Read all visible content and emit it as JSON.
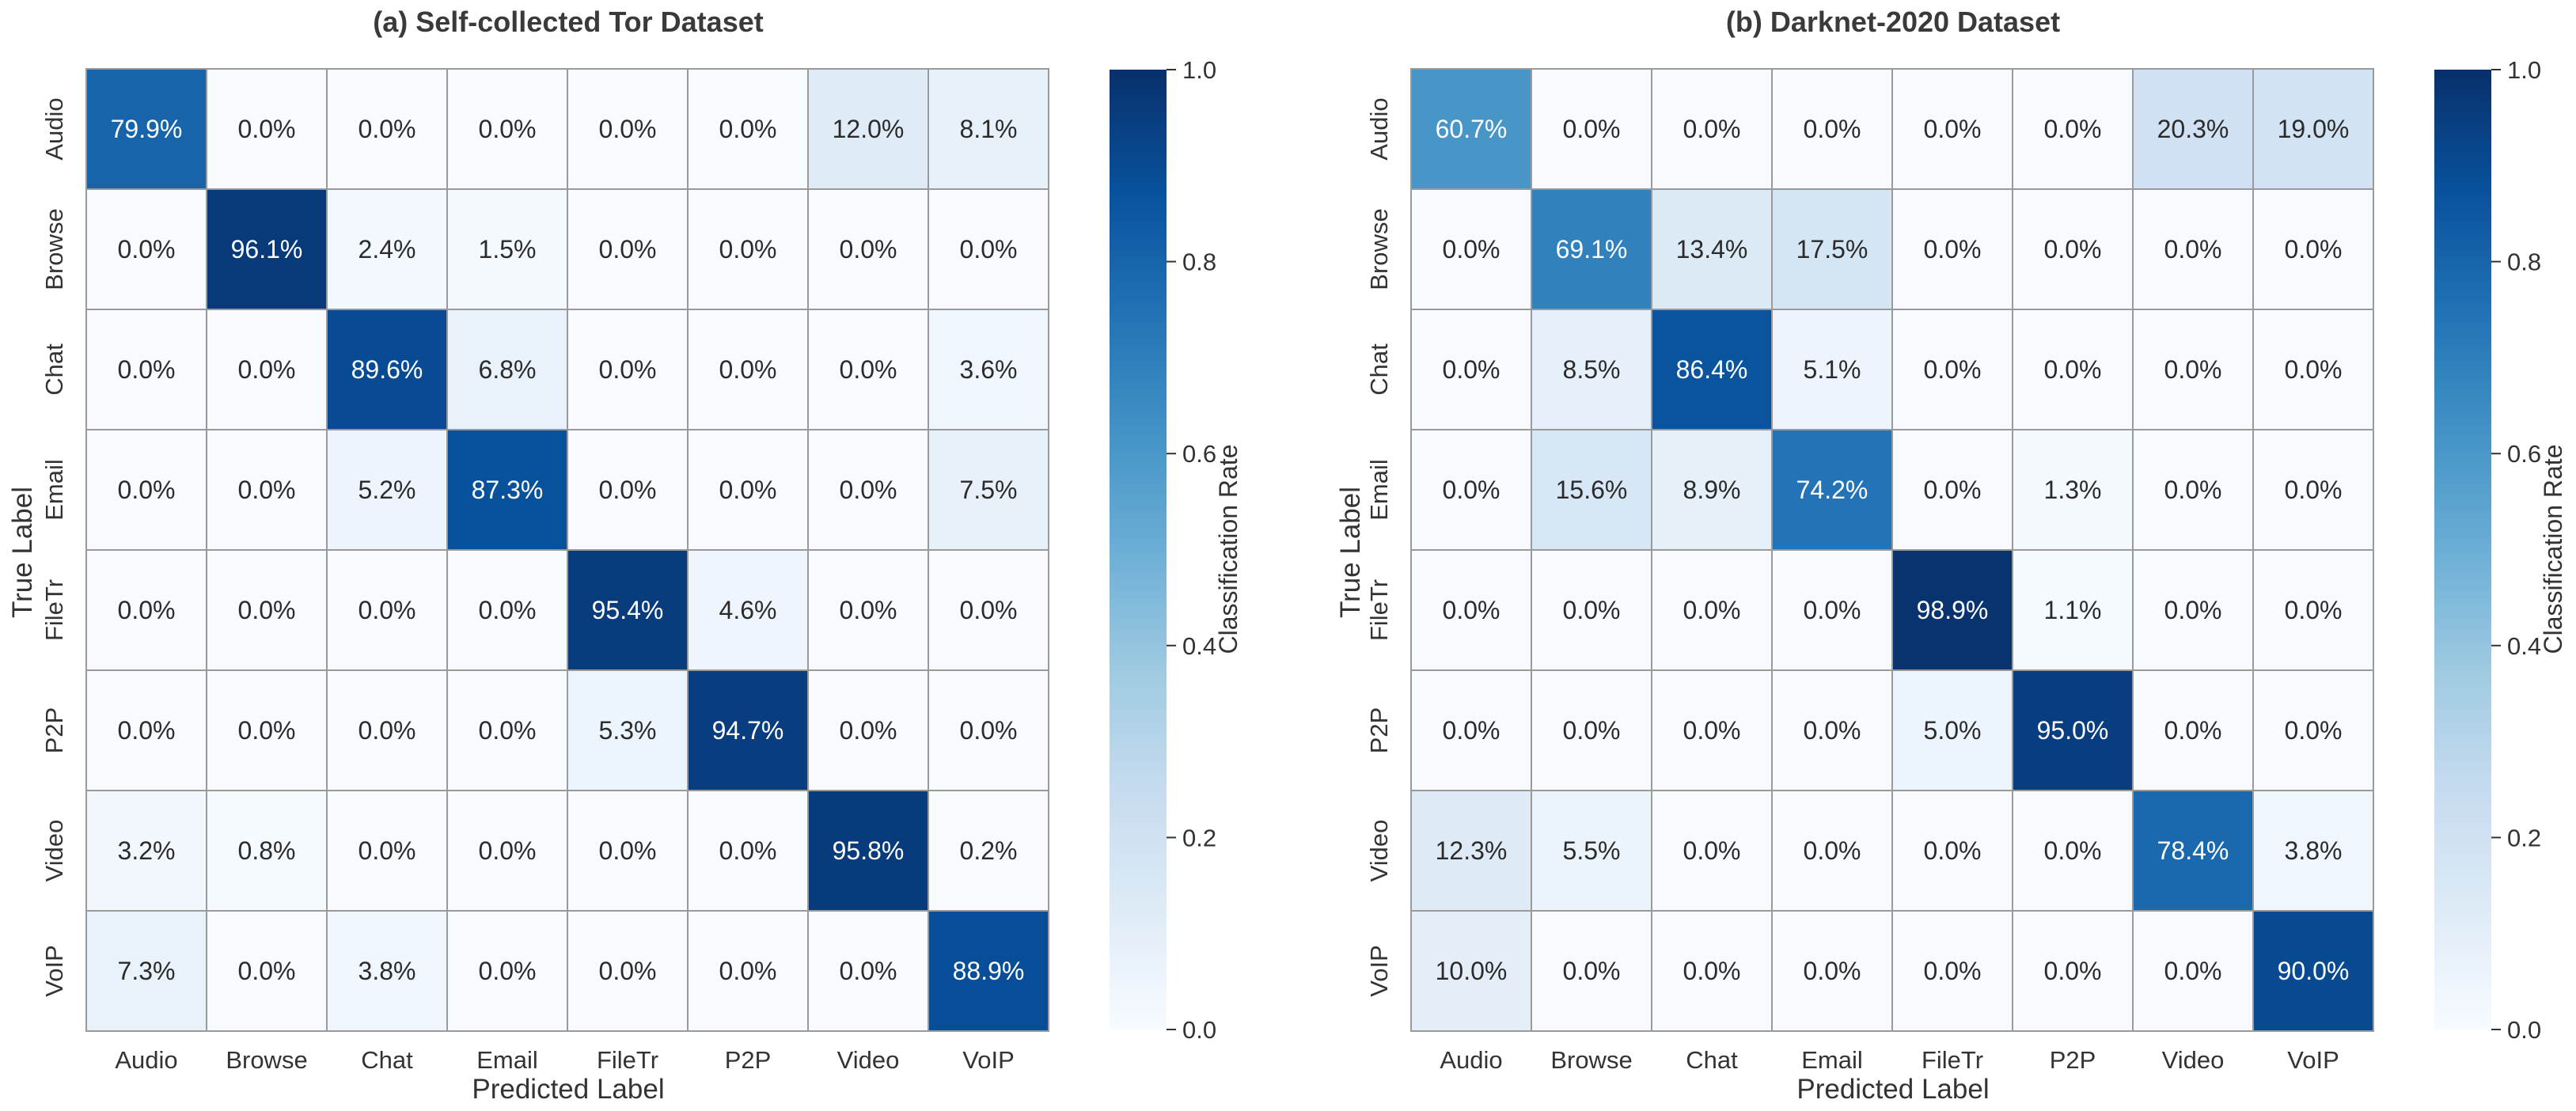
{
  "chart_data": [
    {
      "type": "heatmap",
      "title": "(a) Self-collected Tor Dataset",
      "xlabel": "Predicted Label",
      "ylabel": "True Label",
      "x_categories": [
        "Audio",
        "Browse",
        "Chat",
        "Email",
        "FileTr",
        "P2P",
        "Video",
        "VoIP"
      ],
      "y_categories": [
        "Audio",
        "Browse",
        "Chat",
        "Email",
        "FileTr",
        "P2P",
        "Video",
        "VoIP"
      ],
      "values": [
        [
          79.9,
          0.0,
          0.0,
          0.0,
          0.0,
          0.0,
          12.0,
          8.1
        ],
        [
          0.0,
          96.1,
          2.4,
          1.5,
          0.0,
          0.0,
          0.0,
          0.0
        ],
        [
          0.0,
          0.0,
          89.6,
          6.8,
          0.0,
          0.0,
          0.0,
          3.6
        ],
        [
          0.0,
          0.0,
          5.2,
          87.3,
          0.0,
          0.0,
          0.0,
          7.5
        ],
        [
          0.0,
          0.0,
          0.0,
          0.0,
          95.4,
          4.6,
          0.0,
          0.0
        ],
        [
          0.0,
          0.0,
          0.0,
          0.0,
          5.3,
          94.7,
          0.0,
          0.0
        ],
        [
          3.2,
          0.8,
          0.0,
          0.0,
          0.0,
          0.0,
          95.8,
          0.2
        ],
        [
          7.3,
          0.0,
          3.8,
          0.0,
          0.0,
          0.0,
          0.0,
          88.9
        ]
      ],
      "value_suffix": "%",
      "colorbar": {
        "label": "Classification Rate",
        "range": [
          0.0,
          1.0
        ],
        "ticks": [
          "0.0",
          "0.2",
          "0.4",
          "0.6",
          "0.8",
          "1.0"
        ]
      }
    },
    {
      "type": "heatmap",
      "title": "(b) Darknet-2020 Dataset",
      "xlabel": "Predicted Label",
      "ylabel": "True Label",
      "x_categories": [
        "Audio",
        "Browse",
        "Chat",
        "Email",
        "FileTr",
        "P2P",
        "Video",
        "VoIP"
      ],
      "y_categories": [
        "Audio",
        "Browse",
        "Chat",
        "Email",
        "FileTr",
        "P2P",
        "Video",
        "VoIP"
      ],
      "values": [
        [
          60.7,
          0.0,
          0.0,
          0.0,
          0.0,
          0.0,
          20.3,
          19.0
        ],
        [
          0.0,
          69.1,
          13.4,
          17.5,
          0.0,
          0.0,
          0.0,
          0.0
        ],
        [
          0.0,
          8.5,
          86.4,
          5.1,
          0.0,
          0.0,
          0.0,
          0.0
        ],
        [
          0.0,
          15.6,
          8.9,
          74.2,
          0.0,
          1.3,
          0.0,
          0.0
        ],
        [
          0.0,
          0.0,
          0.0,
          0.0,
          98.9,
          1.1,
          0.0,
          0.0
        ],
        [
          0.0,
          0.0,
          0.0,
          0.0,
          5.0,
          95.0,
          0.0,
          0.0
        ],
        [
          12.3,
          5.5,
          0.0,
          0.0,
          0.0,
          0.0,
          78.4,
          3.8
        ],
        [
          10.0,
          0.0,
          0.0,
          0.0,
          0.0,
          0.0,
          0.0,
          90.0
        ]
      ],
      "value_suffix": "%",
      "colorbar": {
        "label": "Classification Rate",
        "range": [
          0.0,
          1.0
        ],
        "ticks": [
          "0.0",
          "0.2",
          "0.4",
          "0.6",
          "0.8",
          "1.0"
        ]
      }
    }
  ],
  "colormap": {
    "name": "Blues",
    "stops": [
      "#f7fbff",
      "#deebf7",
      "#c6dbef",
      "#9ecae1",
      "#6baed6",
      "#4292c6",
      "#2171b5",
      "#08519c",
      "#08306b"
    ],
    "text_dark": "#2b2b2b",
    "text_light": "#ffffff"
  }
}
